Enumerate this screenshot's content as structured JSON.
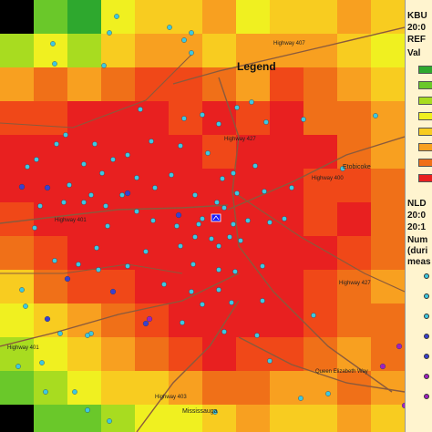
{
  "map": {
    "legend_heading": "Legend",
    "labels": {
      "highway_407": "Highway 407",
      "highway_427_north": "Highway 427",
      "highway_400": "Highway 400",
      "highway_401_west": "Highway 401",
      "highway_427_south": "Highway 427",
      "highway_401_south": "Highway 401",
      "highway_403": "Highway 403",
      "queen_elizabeth_way": "Queen Elizabeth Way",
      "etobicoke": "Etobicoke",
      "mississauga": "Mississauga"
    },
    "colors": {
      "background": "#fde0a0",
      "roads": "#8a5a3c",
      "station_cyan": "#3ec8e0",
      "station_blue": "#3a3fd0",
      "station_purple": "#a020c0",
      "radar_icon": "#1a1aff",
      "palette": [
        "#2ea82e",
        "#6ac82a",
        "#a8dc20",
        "#f0f020",
        "#f8cc20",
        "#f8a020",
        "#f07018",
        "#f04818",
        "#e82020",
        "#ffffff",
        "#000000"
      ]
    }
  },
  "legend_panel": {
    "kbuf_title": "KBU",
    "kbuf_time": "20:0",
    "kbuf_product": "REF",
    "kbuf_value": "Val",
    "nldn_title": "NLD",
    "nldn_time_start": "20:0",
    "nldn_time_end": "20:1",
    "count_label": "Num",
    "count_sub1": "(duri",
    "count_sub2": "meas",
    "swatch_colors": [
      "#2ea82e",
      "#6ac82a",
      "#a8dc20",
      "#f0f020",
      "#f8cc20",
      "#f8a020",
      "#f07018",
      "#e82020"
    ],
    "dot_colors": [
      "#3ec8e0",
      "#3ec8e0",
      "#3ec8e0",
      "#3a3fd0",
      "#3a3fd0",
      "#a020c0",
      "#a020c0"
    ]
  }
}
